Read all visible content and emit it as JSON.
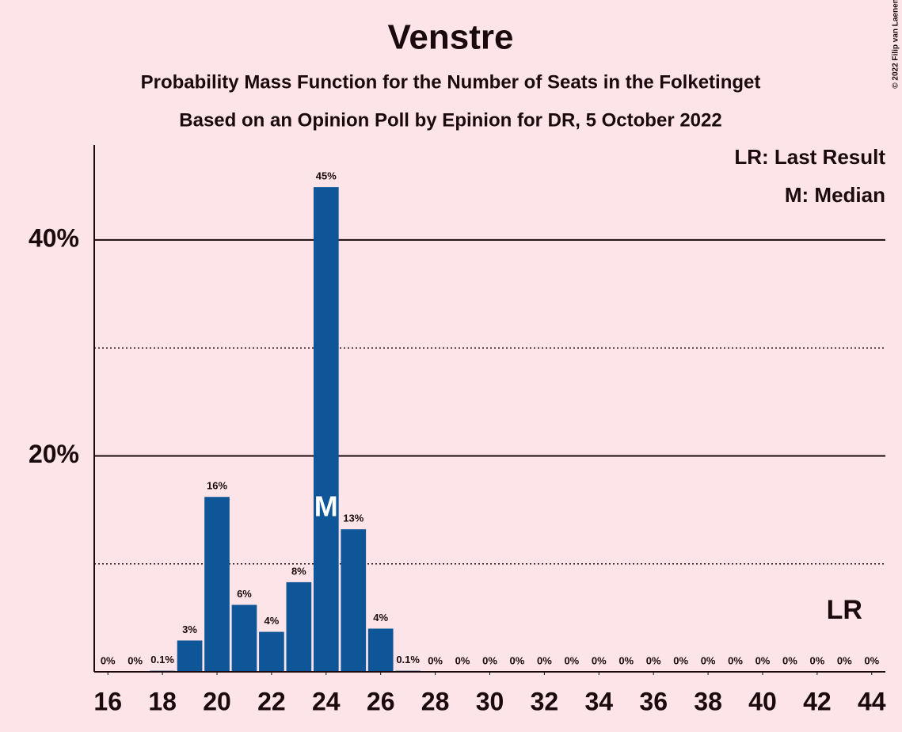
{
  "chart_data": {
    "type": "bar",
    "title": "Venstre",
    "subtitle": "Probability Mass Function for the Number of Seats in the Folketinget",
    "subtitle2": "Based on an Opinion Poll by Epinion for DR, 5 October 2022",
    "copyright": "© 2022 Filip van Laenen",
    "legend": [
      "LR: Last Result",
      "M: Median"
    ],
    "x": [
      16,
      17,
      18,
      19,
      20,
      21,
      22,
      23,
      24,
      25,
      26,
      27,
      28,
      29,
      30,
      31,
      32,
      33,
      34,
      35,
      36,
      37,
      38,
      39,
      40,
      41,
      42,
      43,
      44
    ],
    "values": [
      0,
      0,
      0.1,
      2.9,
      16.2,
      6.2,
      3.7,
      8.3,
      44.9,
      13.2,
      4.0,
      0.1,
      0,
      0,
      0,
      0,
      0,
      0,
      0,
      0,
      0,
      0,
      0,
      0,
      0,
      0,
      0,
      0,
      0
    ],
    "value_labels": [
      "0%",
      "0%",
      "0.1%",
      "3%",
      "16%",
      "6%",
      "4%",
      "8%",
      "45%",
      "13%",
      "4%",
      "0.1%",
      "0%",
      "0%",
      "0%",
      "0%",
      "0%",
      "0%",
      "0%",
      "0%",
      "0%",
      "0%",
      "0%",
      "0%",
      "0%",
      "0%",
      "0%",
      "0%",
      "0%"
    ],
    "color": "#0f5699",
    "median": 24,
    "median_label": "M",
    "last_result": 43,
    "last_result_label": "LR",
    "xlim": [
      15.5,
      44.5
    ],
    "xticks": [
      16,
      18,
      20,
      22,
      24,
      26,
      28,
      30,
      32,
      34,
      36,
      38,
      40,
      42,
      44
    ],
    "ylim": [
      0,
      48.8
    ],
    "yticks": [
      {
        "value": 20,
        "label": "20%"
      },
      {
        "value": 40,
        "label": "40%"
      }
    ],
    "minor_yticks": [
      10,
      30
    ],
    "grid": true
  }
}
